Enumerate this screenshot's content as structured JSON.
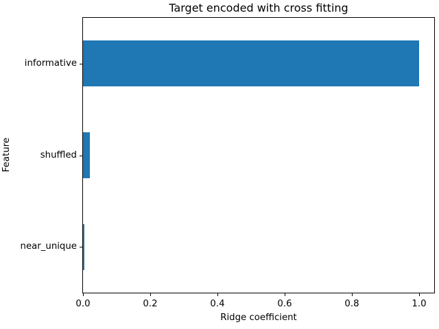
{
  "chart_data": {
    "type": "bar",
    "orientation": "horizontal",
    "title": "Target encoded with cross fitting",
    "xlabel": "Ridge coefficient",
    "ylabel": "Feature",
    "categories": [
      "informative",
      "shuffled",
      "near_unique"
    ],
    "values": [
      1.0,
      0.02,
      0.004
    ],
    "xlim": [
      0,
      1.045
    ],
    "xticks": [
      0.0,
      0.2,
      0.4,
      0.6,
      0.8,
      1.0
    ],
    "xtick_decimals": 1,
    "bar_color": "#1f77b4",
    "spine_color": "#000000",
    "grid": false,
    "legend": false,
    "bar_thickness_ratio": 0.5
  }
}
